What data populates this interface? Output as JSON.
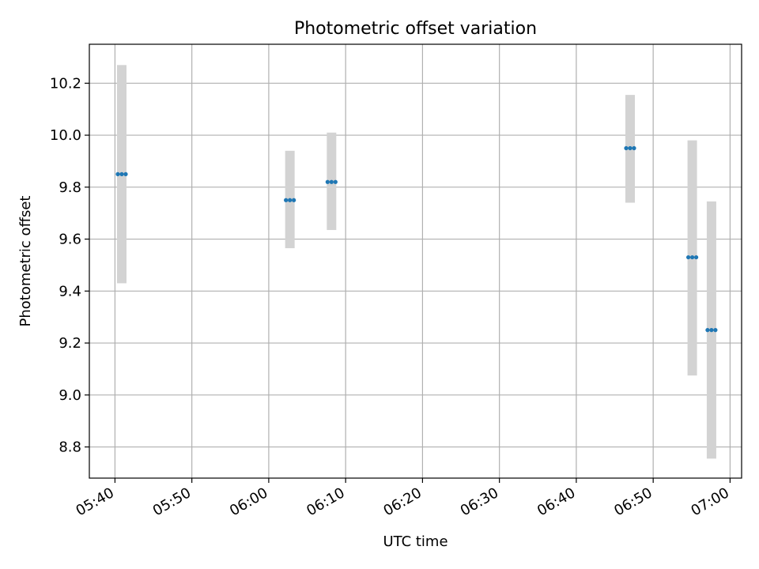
{
  "chart_data": {
    "type": "scatter",
    "title": "Photometric offset variation",
    "xlabel": "UTC time",
    "ylabel": "Photometric offset",
    "x_tick_labels": [
      "05:40",
      "05:50",
      "06:00",
      "06:10",
      "06:20",
      "06:30",
      "06:40",
      "06:50",
      "07:00"
    ],
    "x_ticks": [
      "05:40",
      "05:50",
      "06:00",
      "06:10",
      "06:20",
      "06:30",
      "06:40",
      "06:50",
      "07:00"
    ],
    "y_ticks": [
      8.8,
      9.0,
      9.2,
      9.4,
      9.6,
      9.8,
      10.0,
      10.2
    ],
    "y_tick_labels": [
      "8.8",
      "9.0",
      "9.2",
      "9.4",
      "9.6",
      "9.8",
      "10.0",
      "10.2"
    ],
    "xlim": [
      "05:36:40",
      "07:01:30"
    ],
    "ylim": [
      8.68,
      10.35
    ],
    "grid": true,
    "legend": "none",
    "colors": {
      "points": "#1f77b4",
      "errorbars": "#d3d3d3",
      "grid": "#b0b0b0"
    },
    "points": [
      {
        "x": "05:40:53",
        "y": 9.85,
        "yerr_low": 9.43,
        "yerr_high": 10.27
      },
      {
        "x": "06:02:45",
        "y": 9.75,
        "yerr_low": 9.565,
        "yerr_high": 9.94
      },
      {
        "x": "06:08:10",
        "y": 9.82,
        "yerr_low": 9.635,
        "yerr_high": 10.01
      },
      {
        "x": "06:47:00",
        "y": 9.95,
        "yerr_low": 9.74,
        "yerr_high": 10.155
      },
      {
        "x": "06:55:05",
        "y": 9.53,
        "yerr_low": 9.075,
        "yerr_high": 9.98
      },
      {
        "x": "06:57:35",
        "y": 9.25,
        "yerr_low": 8.755,
        "yerr_high": 9.745
      }
    ]
  }
}
